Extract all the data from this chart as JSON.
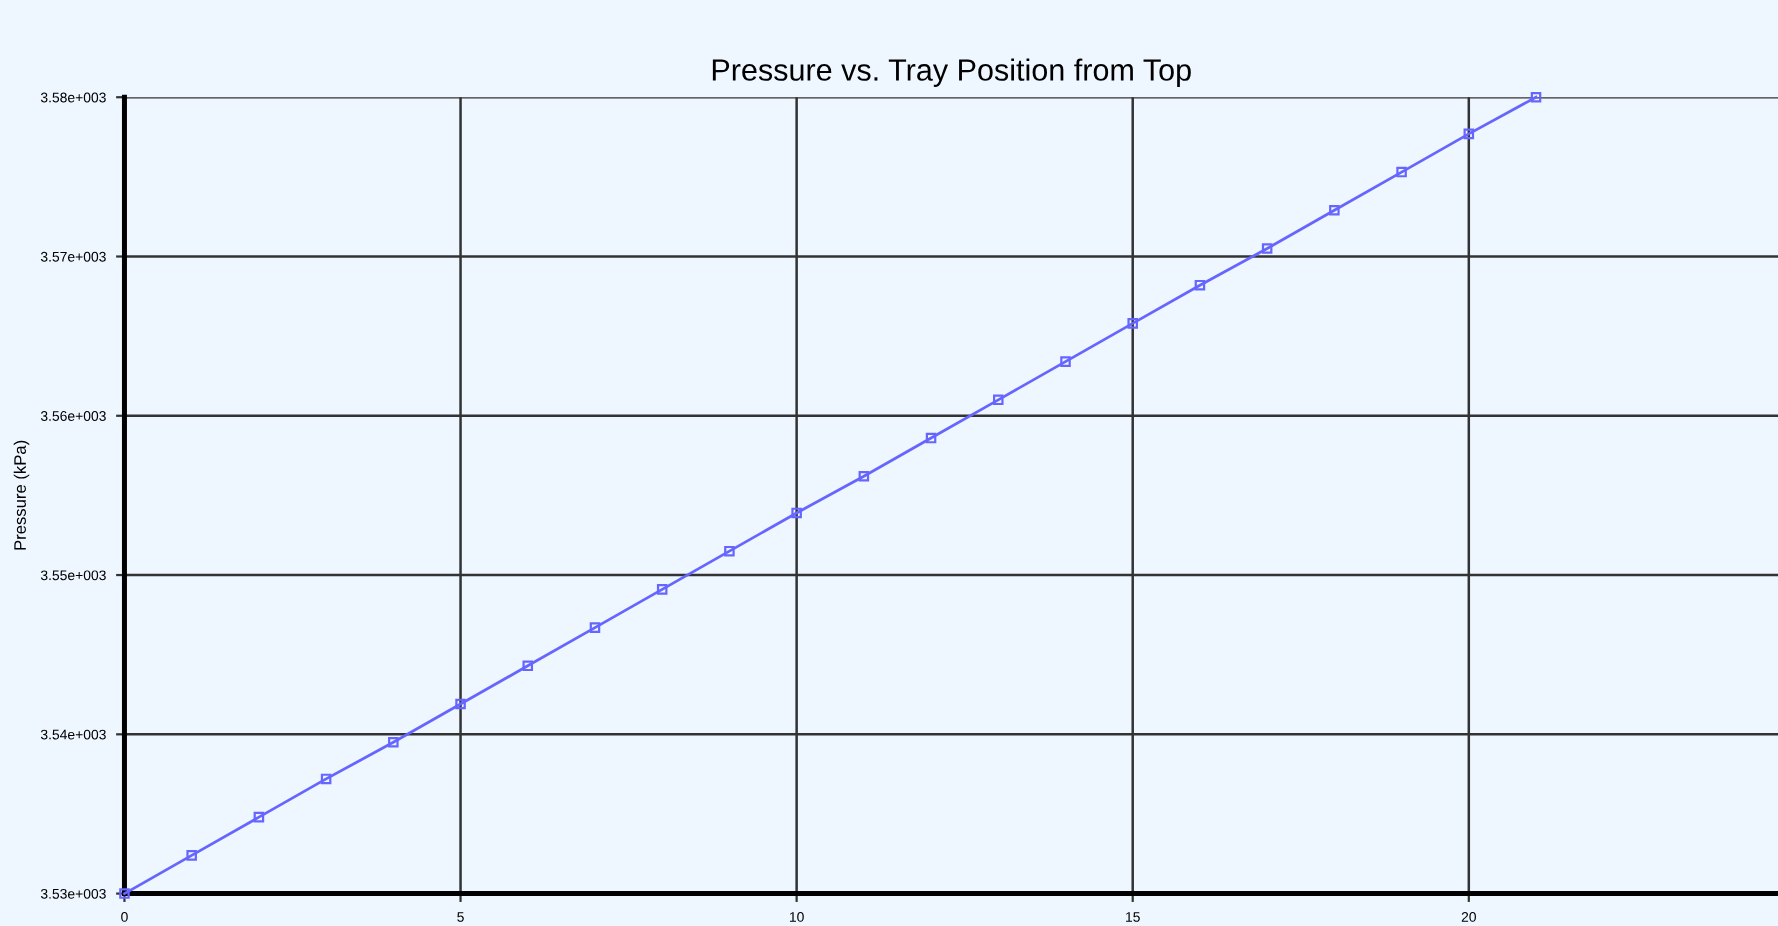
{
  "chart_data": {
    "type": "line",
    "title": "Pressure vs. Tray Position from Top",
    "ylabel": "Pressure (kPa)",
    "x": [
      0,
      1,
      2,
      3,
      4,
      5,
      6,
      7,
      8,
      9,
      10,
      11,
      12,
      13,
      14,
      15,
      16,
      17,
      18,
      19,
      20,
      21
    ],
    "series": [
      {
        "color": "#6666ff",
        "values": [
          3530.0,
          3532.4,
          3534.8,
          3537.2,
          3539.5,
          3541.9,
          3544.3,
          3546.7,
          3549.1,
          3551.5,
          3553.9,
          3556.2,
          3558.6,
          3561.0,
          3563.4,
          3565.8,
          3568.2,
          3570.5,
          3572.9,
          3575.3,
          3577.7,
          3580.0
        ]
      }
    ],
    "xlim": [
      0,
      24.6
    ],
    "xticks": [
      0,
      5,
      10,
      15,
      20
    ],
    "ylim": [
      3530,
      3580
    ],
    "yticks": [
      {
        "value": 3530,
        "label": "3.53e+003"
      },
      {
        "value": 3540,
        "label": "3.54e+003"
      },
      {
        "value": 3550,
        "label": "3.55e+003"
      },
      {
        "value": 3560,
        "label": "3.56e+003"
      },
      {
        "value": 3570,
        "label": "3.57e+003"
      },
      {
        "value": 3580,
        "label": "3.58e+003"
      }
    ],
    "grid": true,
    "marker": "square",
    "line_style": "solid"
  }
}
